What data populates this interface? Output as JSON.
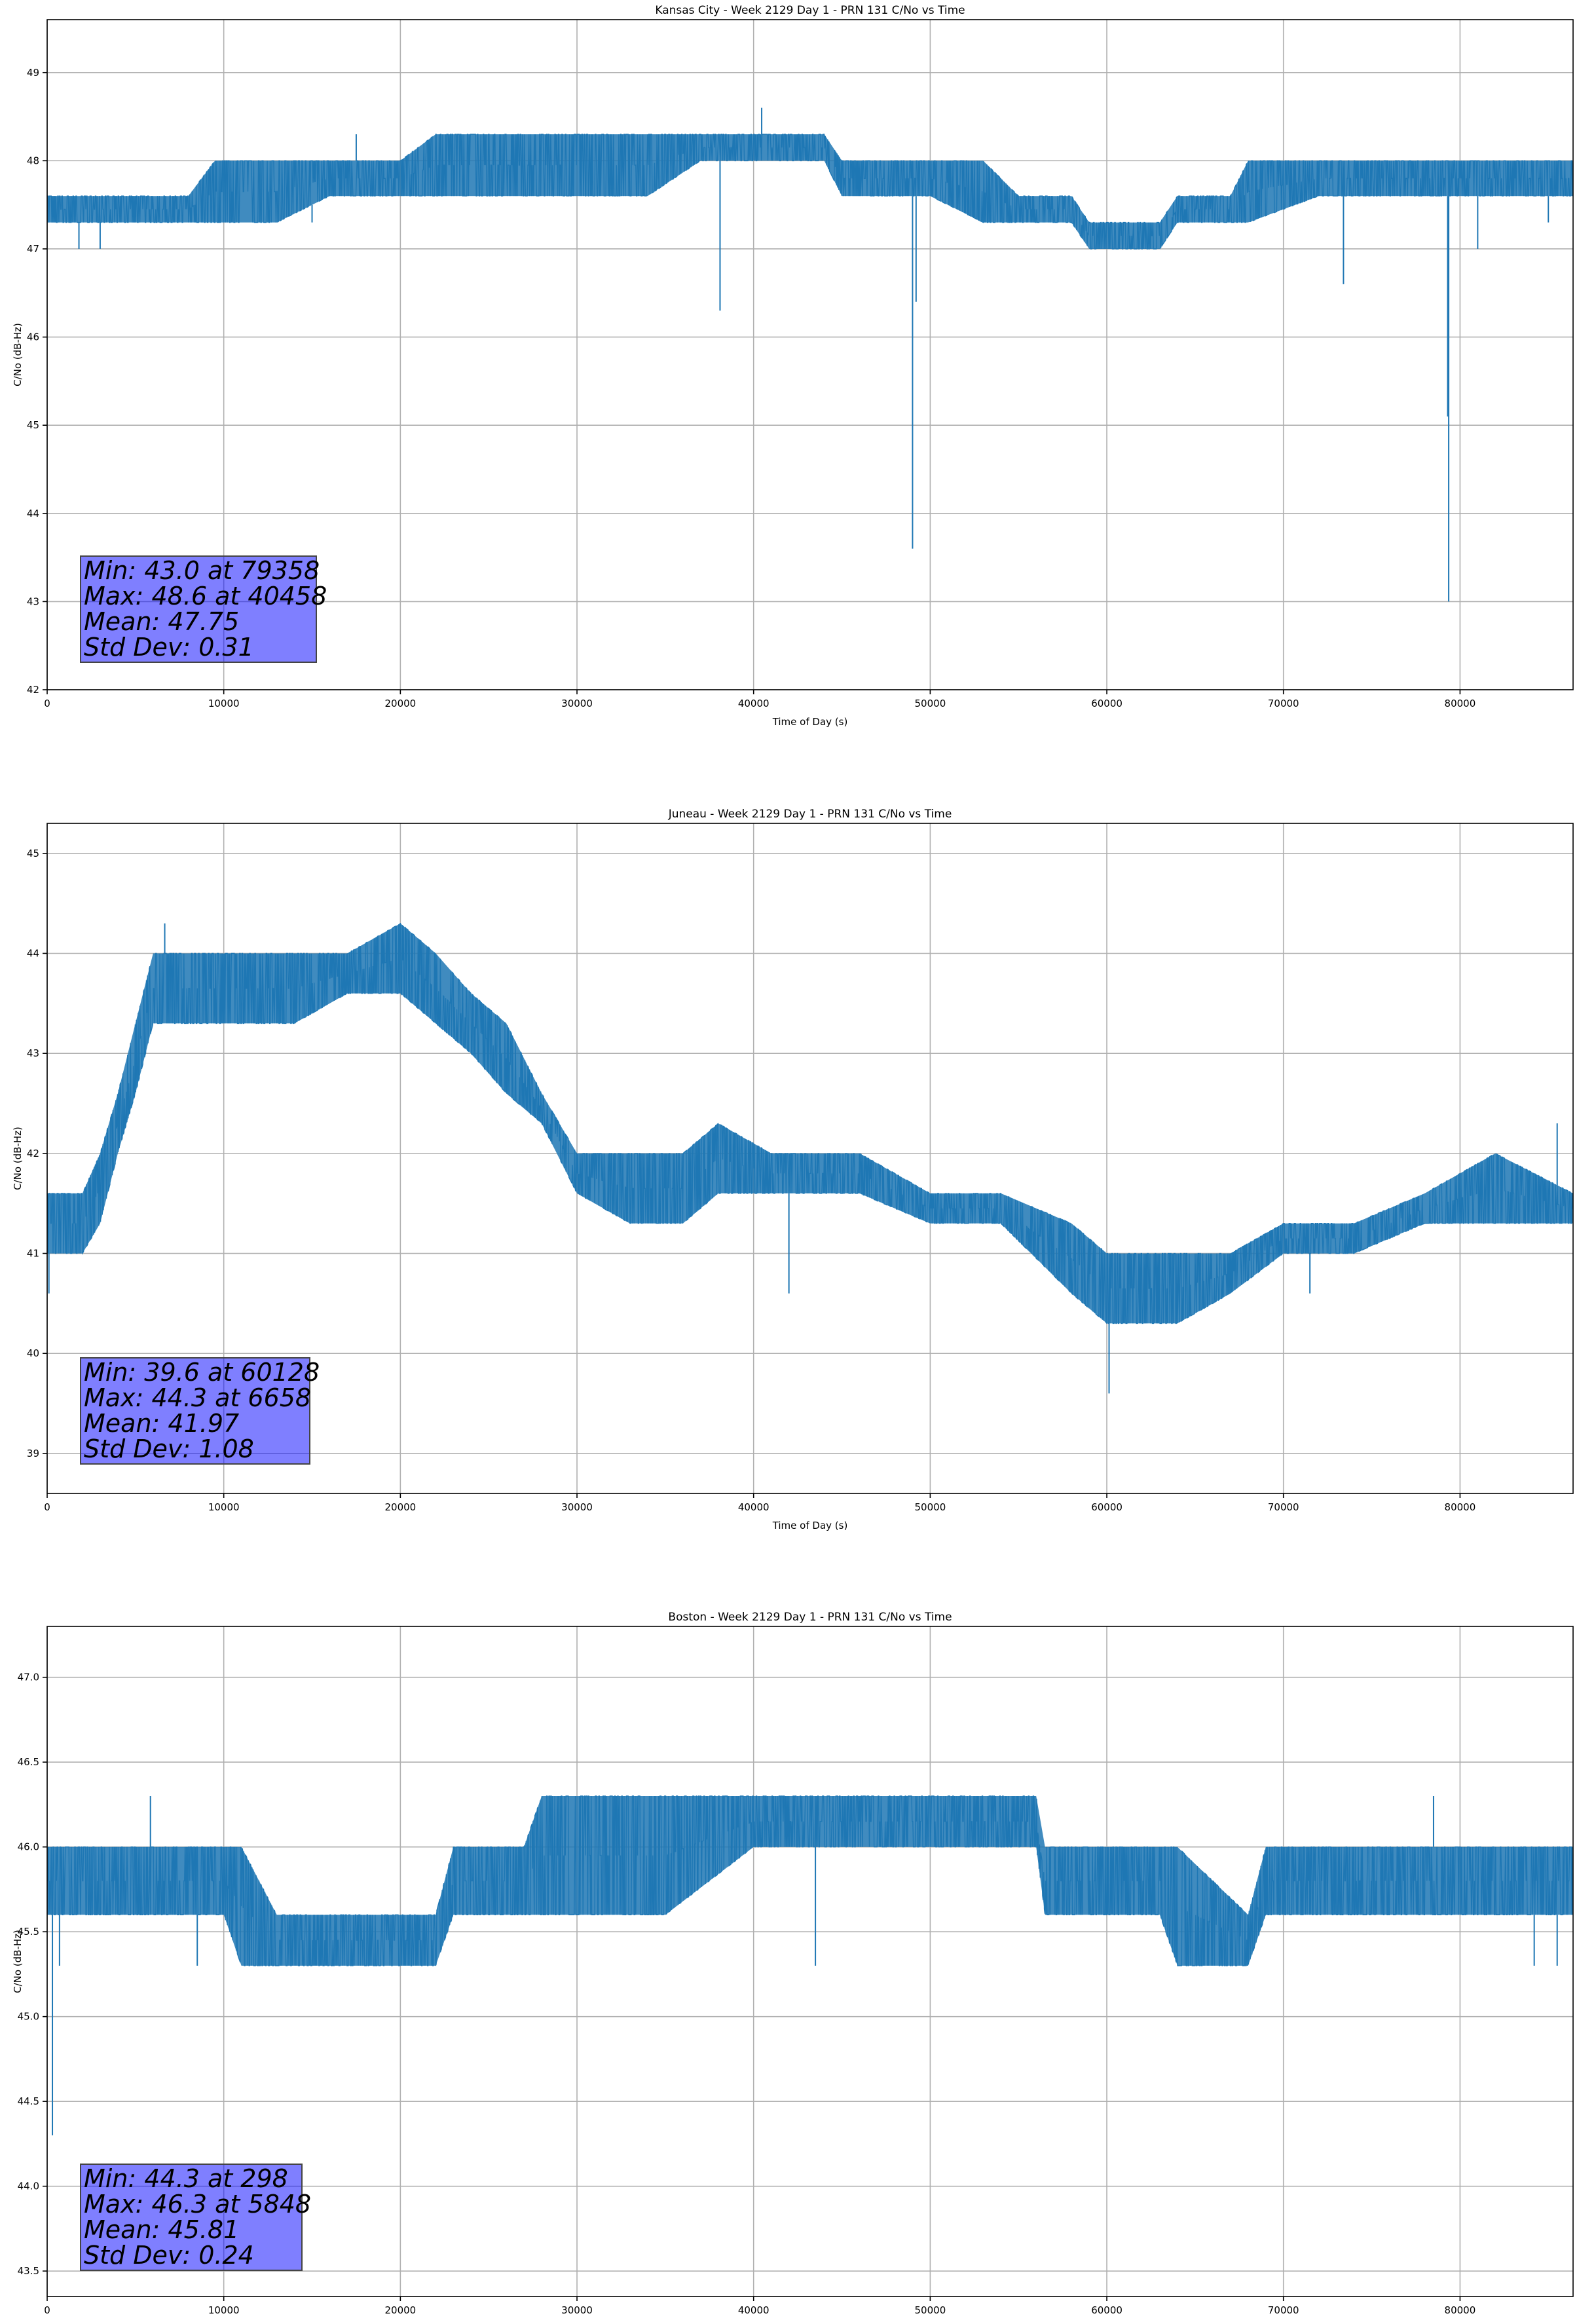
{
  "chart_data": [
    {
      "type": "line",
      "title": "Kansas City - Week 2129 Day 1 - PRN 131 C/No vs Time",
      "xlabel": "Time of Day (s)",
      "ylabel": "C/No (dB-Hz)",
      "xlim": [
        0,
        86400
      ],
      "ylim": [
        42,
        49.6
      ],
      "xticks": [
        0,
        10000,
        20000,
        30000,
        40000,
        50000,
        60000,
        70000,
        80000
      ],
      "yticks": [
        42,
        43,
        44,
        45,
        46,
        47,
        48,
        49
      ],
      "ytick_labels": [
        "42",
        "43",
        "44",
        "45",
        "46",
        "47",
        "48",
        "49"
      ],
      "grid": true,
      "series_color": "#1f77b4",
      "band": [
        {
          "x": 0,
          "lo": 47.3,
          "hi": 47.6
        },
        {
          "x": 2000,
          "lo": 47.3,
          "hi": 47.6
        },
        {
          "x": 5000,
          "lo": 47.3,
          "hi": 47.6
        },
        {
          "x": 8000,
          "lo": 47.3,
          "hi": 47.6
        },
        {
          "x": 9500,
          "lo": 47.3,
          "hi": 48.0
        },
        {
          "x": 13000,
          "lo": 47.3,
          "hi": 48.0
        },
        {
          "x": 16000,
          "lo": 47.6,
          "hi": 48.0
        },
        {
          "x": 20000,
          "lo": 47.6,
          "hi": 48.0
        },
        {
          "x": 22000,
          "lo": 47.6,
          "hi": 48.3
        },
        {
          "x": 26000,
          "lo": 47.6,
          "hi": 48.3
        },
        {
          "x": 30000,
          "lo": 47.6,
          "hi": 48.3
        },
        {
          "x": 34000,
          "lo": 47.6,
          "hi": 48.3
        },
        {
          "x": 37000,
          "lo": 48.0,
          "hi": 48.3
        },
        {
          "x": 40000,
          "lo": 48.0,
          "hi": 48.3
        },
        {
          "x": 44000,
          "lo": 48.0,
          "hi": 48.3
        },
        {
          "x": 45000,
          "lo": 47.6,
          "hi": 48.0
        },
        {
          "x": 50000,
          "lo": 47.6,
          "hi": 48.0
        },
        {
          "x": 53000,
          "lo": 47.3,
          "hi": 48.0
        },
        {
          "x": 55000,
          "lo": 47.3,
          "hi": 47.6
        },
        {
          "x": 58000,
          "lo": 47.3,
          "hi": 47.6
        },
        {
          "x": 59000,
          "lo": 47.0,
          "hi": 47.3
        },
        {
          "x": 63000,
          "lo": 47.0,
          "hi": 47.3
        },
        {
          "x": 64000,
          "lo": 47.3,
          "hi": 47.6
        },
        {
          "x": 67000,
          "lo": 47.3,
          "hi": 47.6
        },
        {
          "x": 68000,
          "lo": 47.3,
          "hi": 48.0
        },
        {
          "x": 72000,
          "lo": 47.6,
          "hi": 48.0
        },
        {
          "x": 76000,
          "lo": 47.6,
          "hi": 48.0
        },
        {
          "x": 80000,
          "lo": 47.6,
          "hi": 48.0
        },
        {
          "x": 84000,
          "lo": 47.6,
          "hi": 48.0
        },
        {
          "x": 86400,
          "lo": 47.6,
          "hi": 48.0
        }
      ],
      "spikes": [
        {
          "x": 1800,
          "to": 47.0
        },
        {
          "x": 3000,
          "to": 47.0
        },
        {
          "x": 15000,
          "to": 47.3
        },
        {
          "x": 17500,
          "to": 48.3
        },
        {
          "x": 38100,
          "to": 46.3
        },
        {
          "x": 40458,
          "to": 48.6
        },
        {
          "x": 49000,
          "to": 43.6
        },
        {
          "x": 49200,
          "to": 46.4
        },
        {
          "x": 73400,
          "to": 46.6
        },
        {
          "x": 79358,
          "to": 43.0
        },
        {
          "x": 79300,
          "to": 45.1
        },
        {
          "x": 81000,
          "to": 47.0
        },
        {
          "x": 85000,
          "to": 47.3
        }
      ],
      "stats": [
        "Min: 43.0 at 79358",
        "Max: 48.6 at 40458",
        "Mean: 47.75",
        "Std Dev: 0.31"
      ]
    },
    {
      "type": "line",
      "title": "Juneau - Week 2129 Day 1 - PRN 131 C/No vs Time",
      "xlabel": "Time of Day (s)",
      "ylabel": "C/No (dB-Hz)",
      "xlim": [
        0,
        86400
      ],
      "ylim": [
        38.6,
        45.3
      ],
      "xticks": [
        0,
        10000,
        20000,
        30000,
        40000,
        50000,
        60000,
        70000,
        80000
      ],
      "yticks": [
        39,
        40,
        41,
        42,
        43,
        44,
        45
      ],
      "ytick_labels": [
        "39",
        "40",
        "41",
        "42",
        "43",
        "44",
        "45"
      ],
      "grid": true,
      "series_color": "#1f77b4",
      "band": [
        {
          "x": 0,
          "lo": 41.0,
          "hi": 41.6
        },
        {
          "x": 2000,
          "lo": 41.0,
          "hi": 41.6
        },
        {
          "x": 3000,
          "lo": 41.3,
          "hi": 42.0
        },
        {
          "x": 4000,
          "lo": 42.0,
          "hi": 42.6
        },
        {
          "x": 5000,
          "lo": 42.6,
          "hi": 43.3
        },
        {
          "x": 6000,
          "lo": 43.3,
          "hi": 44.0
        },
        {
          "x": 8000,
          "lo": 43.3,
          "hi": 44.0
        },
        {
          "x": 11000,
          "lo": 43.3,
          "hi": 44.0
        },
        {
          "x": 14000,
          "lo": 43.3,
          "hi": 44.0
        },
        {
          "x": 17000,
          "lo": 43.6,
          "hi": 44.0
        },
        {
          "x": 20000,
          "lo": 43.6,
          "hi": 44.3
        },
        {
          "x": 22000,
          "lo": 43.3,
          "hi": 44.0
        },
        {
          "x": 24000,
          "lo": 43.0,
          "hi": 43.6
        },
        {
          "x": 26000,
          "lo": 42.6,
          "hi": 43.3
        },
        {
          "x": 28000,
          "lo": 42.3,
          "hi": 42.6
        },
        {
          "x": 30000,
          "lo": 41.6,
          "hi": 42.0
        },
        {
          "x": 33000,
          "lo": 41.3,
          "hi": 42.0
        },
        {
          "x": 36000,
          "lo": 41.3,
          "hi": 42.0
        },
        {
          "x": 38000,
          "lo": 41.6,
          "hi": 42.3
        },
        {
          "x": 41000,
          "lo": 41.6,
          "hi": 42.0
        },
        {
          "x": 46000,
          "lo": 41.6,
          "hi": 42.0
        },
        {
          "x": 50000,
          "lo": 41.3,
          "hi": 41.6
        },
        {
          "x": 54000,
          "lo": 41.3,
          "hi": 41.6
        },
        {
          "x": 58000,
          "lo": 40.6,
          "hi": 41.3
        },
        {
          "x": 60000,
          "lo": 40.3,
          "hi": 41.0
        },
        {
          "x": 64000,
          "lo": 40.3,
          "hi": 41.0
        },
        {
          "x": 67000,
          "lo": 40.6,
          "hi": 41.0
        },
        {
          "x": 70000,
          "lo": 41.0,
          "hi": 41.3
        },
        {
          "x": 74000,
          "lo": 41.0,
          "hi": 41.3
        },
        {
          "x": 78000,
          "lo": 41.3,
          "hi": 41.6
        },
        {
          "x": 82000,
          "lo": 41.3,
          "hi": 42.0
        },
        {
          "x": 86400,
          "lo": 41.3,
          "hi": 41.6
        }
      ],
      "spikes": [
        {
          "x": 100,
          "to": 40.6
        },
        {
          "x": 6658,
          "to": 44.3
        },
        {
          "x": 42000,
          "to": 40.6
        },
        {
          "x": 60128,
          "to": 39.6
        },
        {
          "x": 71500,
          "to": 40.6
        },
        {
          "x": 85500,
          "to": 42.3
        }
      ],
      "stats": [
        "Min: 39.6 at 60128",
        "Max: 44.3 at 6658",
        "Mean: 41.97",
        "Std Dev: 1.08"
      ]
    },
    {
      "type": "line",
      "title": "Boston - Week 2129 Day 1 - PRN 131 C/No vs Time",
      "xlabel": "Time of Day (s)",
      "ylabel": "C/No (dB-Hz)",
      "xlim": [
        0,
        86400
      ],
      "ylim": [
        43.35,
        47.3
      ],
      "xticks": [
        0,
        10000,
        20000,
        30000,
        40000,
        50000,
        60000,
        70000,
        80000
      ],
      "yticks": [
        43.5,
        44.0,
        44.5,
        45.0,
        45.5,
        46.0,
        46.5,
        47.0
      ],
      "ytick_labels": [
        "43.5",
        "44.0",
        "44.5",
        "45.0",
        "45.5",
        "46.0",
        "46.5",
        "47.0"
      ],
      "grid": true,
      "series_color": "#1f77b4",
      "band": [
        {
          "x": 0,
          "lo": 45.6,
          "hi": 46.0
        },
        {
          "x": 5000,
          "lo": 45.6,
          "hi": 46.0
        },
        {
          "x": 10000,
          "lo": 45.6,
          "hi": 46.0
        },
        {
          "x": 11000,
          "lo": 45.3,
          "hi": 46.0
        },
        {
          "x": 13000,
          "lo": 45.3,
          "hi": 45.6
        },
        {
          "x": 18000,
          "lo": 45.3,
          "hi": 45.6
        },
        {
          "x": 22000,
          "lo": 45.3,
          "hi": 45.6
        },
        {
          "x": 23000,
          "lo": 45.6,
          "hi": 46.0
        },
        {
          "x": 27000,
          "lo": 45.6,
          "hi": 46.0
        },
        {
          "x": 28000,
          "lo": 45.6,
          "hi": 46.3
        },
        {
          "x": 35000,
          "lo": 45.6,
          "hi": 46.3
        },
        {
          "x": 40000,
          "lo": 46.0,
          "hi": 46.3
        },
        {
          "x": 50000,
          "lo": 46.0,
          "hi": 46.3
        },
        {
          "x": 56000,
          "lo": 46.0,
          "hi": 46.3
        },
        {
          "x": 56500,
          "lo": 45.6,
          "hi": 46.0
        },
        {
          "x": 63000,
          "lo": 45.6,
          "hi": 46.0
        },
        {
          "x": 64000,
          "lo": 45.3,
          "hi": 46.0
        },
        {
          "x": 68000,
          "lo": 45.3,
          "hi": 45.6
        },
        {
          "x": 69000,
          "lo": 45.6,
          "hi": 46.0
        },
        {
          "x": 75000,
          "lo": 45.6,
          "hi": 46.0
        },
        {
          "x": 80000,
          "lo": 45.6,
          "hi": 46.0
        },
        {
          "x": 86400,
          "lo": 45.6,
          "hi": 46.0
        }
      ],
      "spikes": [
        {
          "x": 298,
          "to": 44.3
        },
        {
          "x": 700,
          "to": 45.3
        },
        {
          "x": 5848,
          "to": 46.3
        },
        {
          "x": 8500,
          "to": 45.3
        },
        {
          "x": 43500,
          "to": 45.3
        },
        {
          "x": 78500,
          "to": 46.3
        },
        {
          "x": 84200,
          "to": 45.3
        },
        {
          "x": 85500,
          "to": 45.3
        }
      ],
      "stats": [
        "Min: 44.3 at 298",
        "Max: 46.3 at 5848",
        "Mean: 45.81",
        "Std Dev: 0.24"
      ]
    }
  ]
}
